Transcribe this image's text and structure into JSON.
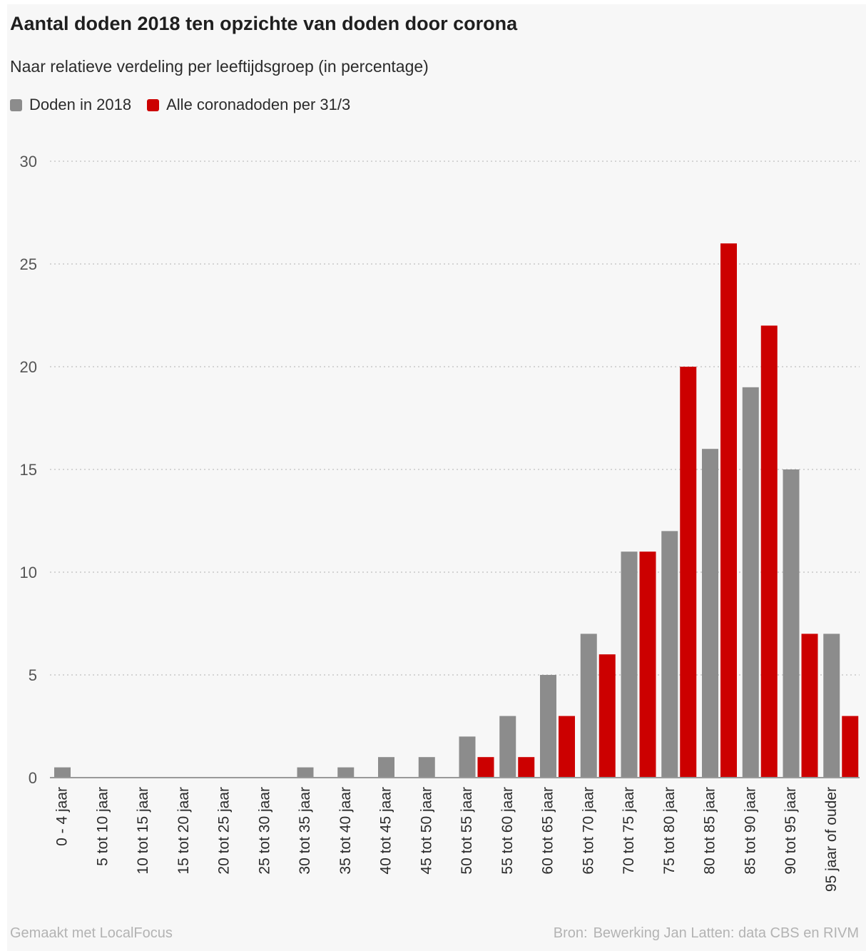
{
  "chart_data": {
    "type": "bar",
    "title": "Aantal doden 2018 ten opzichte van doden door corona",
    "subtitle": "Naar relatieve verdeling per leeftijdsgroep (in percentage)",
    "xlabel": "",
    "ylabel": "",
    "ylim": [
      0,
      30
    ],
    "yticks": [
      0,
      5,
      10,
      15,
      20,
      25,
      30
    ],
    "grid": true,
    "legend_position": "top-left",
    "categories": [
      "0 - 4 jaar",
      "5 tot 10 jaar",
      "10 tot 15 jaar",
      "15 tot 20 jaar",
      "20 tot 25 jaar",
      "25 tot 30 jaar",
      "30 tot 35 jaar",
      "35 tot 40 jaar",
      "40 tot 45 jaar",
      "45 tot 50 jaar",
      "50 tot 55 jaar",
      "55 tot 60 jaar",
      "60 tot 65 jaar",
      "65 tot 70 jaar",
      "70 tot 75 jaar",
      "75 tot 80 jaar",
      "80 tot 85 jaar",
      "85 tot 90 jaar",
      "90 tot 95 jaar",
      "95 jaar of ouder"
    ],
    "series": [
      {
        "name": "Doden in 2018",
        "color": "#8c8c8c",
        "values": [
          0.5,
          0,
          0,
          0,
          0,
          0,
          0.5,
          0.5,
          1,
          1,
          2,
          3,
          5,
          7,
          11,
          12,
          16,
          19,
          15,
          7
        ]
      },
      {
        "name": "Alle coronadoden per 31/3",
        "color": "#cc0000",
        "values": [
          0,
          0,
          0,
          0,
          0,
          0,
          0,
          0,
          0,
          0,
          1,
          1,
          3,
          6,
          11,
          20,
          26,
          22,
          7,
          3
        ]
      }
    ]
  },
  "footer": {
    "credit": "Gemaakt met LocalFocus",
    "source_label": "Bron:",
    "source_text": "Bewerking Jan Latten: data CBS en RIVM"
  }
}
